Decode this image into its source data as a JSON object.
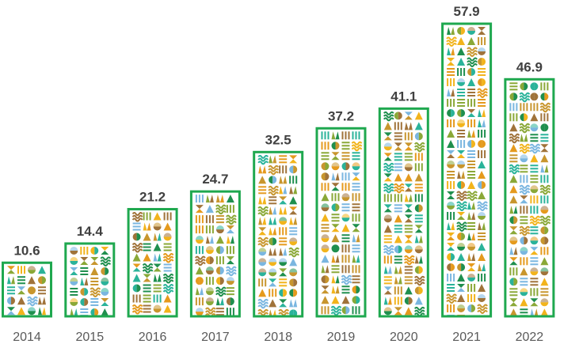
{
  "chart_data": {
    "type": "bar",
    "title": "",
    "xlabel": "",
    "ylabel": "",
    "categories": [
      "2014",
      "2015",
      "2016",
      "2017",
      "2018",
      "2019",
      "2020",
      "2021",
      "2022"
    ],
    "values": [
      10.6,
      14.4,
      21.2,
      24.7,
      32.5,
      37.2,
      41.1,
      57.9,
      46.9
    ],
    "value_labels": [
      "10.6",
      "14.4",
      "21.2",
      "24.7",
      "32.5",
      "37.2",
      "41.1",
      "57.9",
      "46.9"
    ],
    "ylim": [
      0,
      57.9
    ],
    "grid": false,
    "legend": "none",
    "colors": {
      "bar_border": "#1fa84f",
      "value_text": "#404040",
      "tick_text": "#595959",
      "pattern_palette": [
        "#c8962e",
        "#f2b41c",
        "#8aa837",
        "#1f8f4e",
        "#2ab39a",
        "#7ab6e0",
        "#a0733a",
        "#e59a1d"
      ]
    }
  }
}
